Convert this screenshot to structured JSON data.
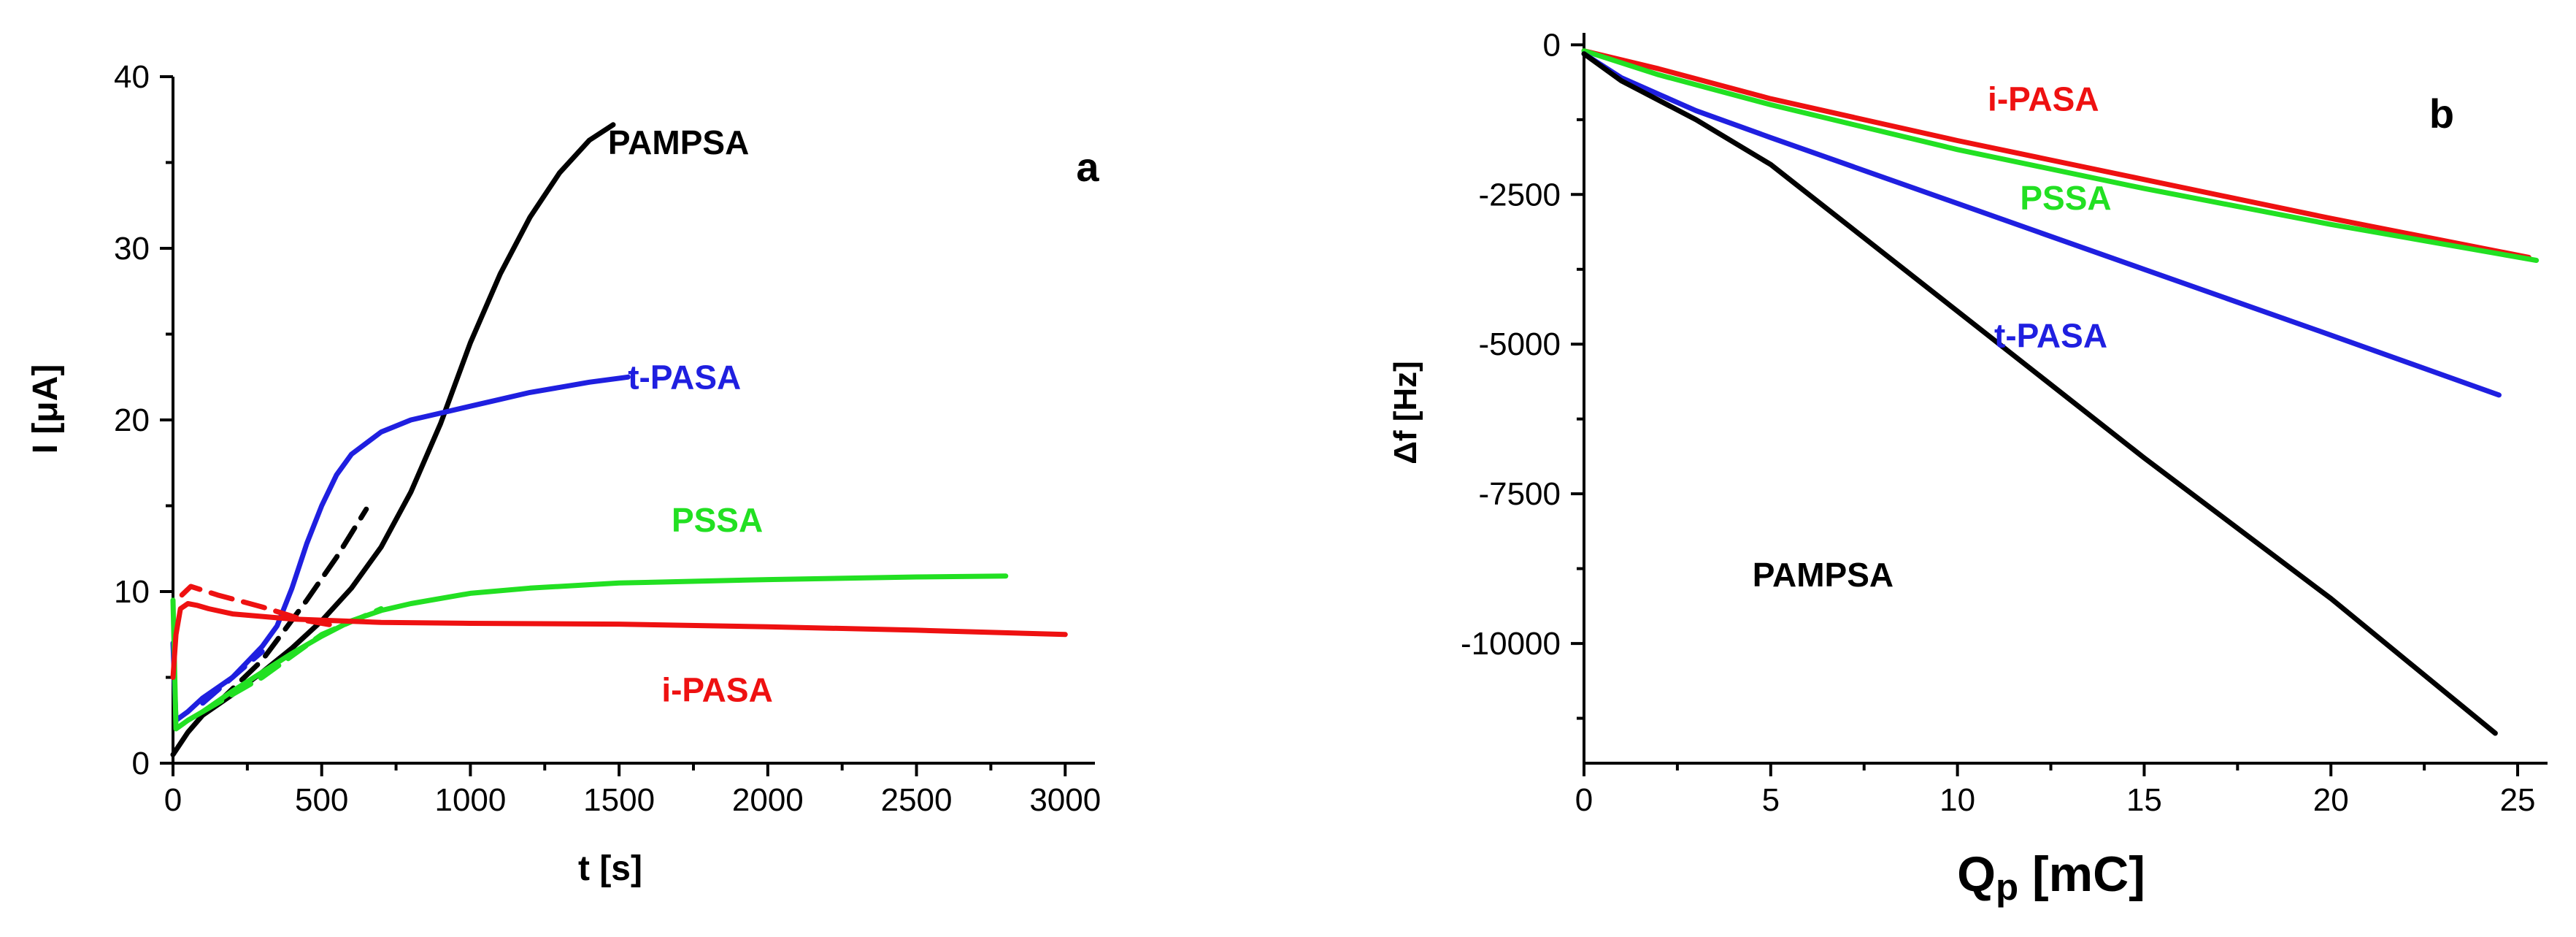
{
  "chart_data": [
    {
      "panel": "a",
      "type": "line",
      "xlabel": "t [s]",
      "ylabel": "I [μA]",
      "xlim": [
        0,
        3100
      ],
      "ylim": [
        0,
        40
      ],
      "xticks": [
        "0",
        "500",
        "1000",
        "1500",
        "2000",
        "2500",
        "3000"
      ],
      "xtick_values": [
        0,
        500,
        1000,
        1500,
        2000,
        2500,
        3000
      ],
      "yticks": [
        "0",
        "10",
        "20",
        "30",
        "40"
      ],
      "ytick_values": [
        0,
        10,
        20,
        30,
        40
      ],
      "series": [
        {
          "name": "PAMPSA",
          "color": "#000000",
          "style": "solid",
          "x": [
            0,
            50,
            100,
            200,
            300,
            400,
            500,
            600,
            700,
            800,
            900,
            1000,
            1100,
            1200,
            1300,
            1400,
            1480
          ],
          "y": [
            0.5,
            1.8,
            2.8,
            4.0,
            5.3,
            6.7,
            8.3,
            10.2,
            12.6,
            15.8,
            19.8,
            24.5,
            28.5,
            31.8,
            34.4,
            36.3,
            37.2
          ]
        },
        {
          "name": "PAMPSA-dashed",
          "color": "#000000",
          "style": "dashed",
          "x": [
            150,
            300,
            450,
            550,
            650
          ],
          "y": [
            3.5,
            6.0,
            9.5,
            12.0,
            14.8
          ]
        },
        {
          "name": "t-PASA",
          "color": "#1f1fe0",
          "style": "solid",
          "x": [
            0,
            10,
            50,
            100,
            200,
            300,
            350,
            400,
            450,
            500,
            550,
            600,
            700,
            800,
            900,
            1000,
            1100,
            1200,
            1300,
            1400,
            1530
          ],
          "y": [
            7.0,
            2.5,
            3.0,
            3.8,
            5.0,
            6.8,
            8.0,
            10.2,
            12.8,
            15.0,
            16.8,
            18.0,
            19.3,
            20.0,
            20.4,
            20.8,
            21.2,
            21.6,
            21.9,
            22.2,
            22.5
          ]
        },
        {
          "name": "t-PASA-dashed",
          "color": "#1f1fe0",
          "style": "dashed",
          "x": [
            100,
            300
          ],
          "y": [
            3.5,
            6.5
          ]
        },
        {
          "name": "PSSA",
          "color": "#22e022",
          "style": "solid",
          "x": [
            0,
            10,
            50,
            100,
            200,
            300,
            400,
            500,
            600,
            700,
            800,
            1000,
            1200,
            1500,
            2000,
            2500,
            2800
          ],
          "y": [
            9.5,
            2.0,
            2.5,
            3.0,
            4.2,
            5.3,
            6.4,
            7.4,
            8.3,
            8.9,
            9.3,
            9.9,
            10.2,
            10.5,
            10.7,
            10.85,
            10.9
          ]
        },
        {
          "name": "PSSA-dashed",
          "color": "#22e022",
          "style": "dashed",
          "x": [
            100,
            300,
            500,
            700
          ],
          "y": [
            3.0,
            5.0,
            7.5,
            9.0
          ]
        },
        {
          "name": "i-PASA",
          "color": "#ee1111",
          "style": "solid",
          "x": [
            0,
            10,
            25,
            50,
            80,
            120,
            200,
            400,
            700,
            1000,
            1500,
            2000,
            2500,
            3000
          ],
          "y": [
            5.0,
            7.5,
            9.0,
            9.3,
            9.2,
            9.0,
            8.7,
            8.4,
            8.2,
            8.15,
            8.1,
            7.95,
            7.75,
            7.5
          ]
        },
        {
          "name": "i-PASA-dashed",
          "color": "#ee1111",
          "style": "dashed",
          "x": [
            30,
            60,
            150,
            300,
            450,
            550
          ],
          "y": [
            9.8,
            10.3,
            9.8,
            9.1,
            8.3,
            8.0
          ]
        }
      ],
      "labels": [
        {
          "text": "PAMPSA",
          "color": "#000000",
          "x": 1700,
          "y": 35.5
        },
        {
          "text": "t-PASA",
          "color": "#1f1fe0",
          "x": 1720,
          "y": 21.8
        },
        {
          "text": "PSSA",
          "color": "#22e022",
          "x": 1830,
          "y": 13.5
        },
        {
          "text": "i-PASA",
          "color": "#ee1111",
          "x": 1830,
          "y": 3.6
        }
      ],
      "panel_label": "a"
    },
    {
      "panel": "b",
      "type": "line",
      "xlabel": "Q",
      "xlabel_sub": "p",
      "xlabel_unit": " [mC]",
      "ylabel": "Δf [Hz]",
      "xlim": [
        0,
        25.8
      ],
      "ylim": [
        -12000,
        200
      ],
      "xticks": [
        "0",
        "5",
        "10",
        "15",
        "20",
        "25"
      ],
      "xtick_values": [
        0,
        5,
        10,
        15,
        20,
        25
      ],
      "yticks": [
        "0",
        "-2500",
        "-5000",
        "-7500",
        "-10000"
      ],
      "ytick_values": [
        0,
        -2500,
        -5000,
        -7500,
        -10000
      ],
      "series": [
        {
          "name": "i-PASA",
          "color": "#ee1111",
          "style": "solid",
          "x": [
            0,
            2,
            5,
            10,
            15,
            20,
            25.3
          ],
          "y": [
            -100,
            -400,
            -900,
            -1600,
            -2250,
            -2900,
            -3550
          ]
        },
        {
          "name": "PSSA",
          "color": "#22e022",
          "style": "solid",
          "x": [
            0,
            2,
            5,
            10,
            15,
            20,
            25.5
          ],
          "y": [
            -100,
            -500,
            -1000,
            -1750,
            -2400,
            -3000,
            -3600
          ]
        },
        {
          "name": "t-PASA",
          "color": "#1f1fe0",
          "style": "solid",
          "x": [
            0,
            1,
            3,
            5,
            10,
            15,
            20,
            24.5
          ],
          "y": [
            -150,
            -550,
            -1100,
            -1550,
            -2650,
            -3750,
            -4850,
            -5850
          ]
        },
        {
          "name": "PAMPSA",
          "color": "#000000",
          "style": "solid",
          "x": [
            0,
            1,
            3,
            5,
            10,
            15,
            20,
            24.4
          ],
          "y": [
            -150,
            -600,
            -1250,
            -2000,
            -4450,
            -6900,
            -9250,
            -11500
          ]
        }
      ],
      "labels": [
        {
          "text": "i-PASA",
          "color": "#ee1111",
          "x": 12.3,
          "y": -1100
        },
        {
          "text": "PSSA",
          "color": "#22e022",
          "x": 12.9,
          "y": -2750
        },
        {
          "text": "t-PASA",
          "color": "#1f1fe0",
          "x": 12.5,
          "y": -5050
        },
        {
          "text": "PAMPSA",
          "color": "#000000",
          "x": 6.4,
          "y": -9050
        }
      ],
      "panel_label": "b"
    }
  ]
}
